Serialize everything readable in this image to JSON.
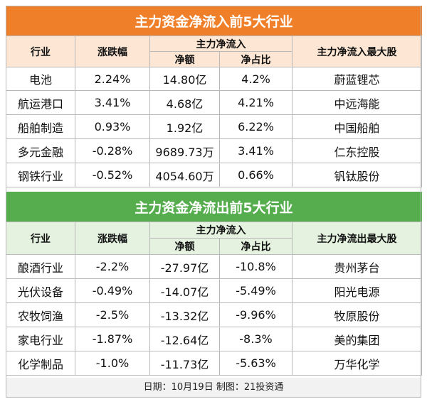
{
  "inflow": {
    "title": "主力资金净流入前5大行业",
    "headers": {
      "industry": "行业",
      "change": "涨跌幅",
      "group": "主力净流入",
      "amount": "净额",
      "ratio": "净占比",
      "top_stock": "主力净流入最大股"
    },
    "rows": [
      {
        "industry": "电池",
        "change": "2.24%",
        "amount": "14.80亿",
        "ratio": "4.2%",
        "top_stock": "蔚蓝锂芯"
      },
      {
        "industry": "航运港口",
        "change": "3.41%",
        "amount": "4.68亿",
        "ratio": "4.21%",
        "top_stock": "中远海能"
      },
      {
        "industry": "船舶制造",
        "change": "0.93%",
        "amount": "1.92亿",
        "ratio": "6.22%",
        "top_stock": "中国船舶"
      },
      {
        "industry": "多元金融",
        "change": "-0.28%",
        "amount": "9689.73万",
        "ratio": "3.41%",
        "top_stock": "仁东控股"
      },
      {
        "industry": "钢铁行业",
        "change": "-0.52%",
        "amount": "4054.60万",
        "ratio": "0.66%",
        "top_stock": "钒钛股份"
      }
    ]
  },
  "outflow": {
    "title": "主力资金净流出前5大行业",
    "headers": {
      "industry": "行业",
      "change": "涨跌幅",
      "group": "主力净流入",
      "amount": "净额",
      "ratio": "净占比",
      "top_stock": "主力净流出最大股"
    },
    "rows": [
      {
        "industry": "酿酒行业",
        "change": "-2.2%",
        "amount": "-27.97亿",
        "ratio": "-10.8%",
        "top_stock": "贵州茅台"
      },
      {
        "industry": "光伏设备",
        "change": "-0.49%",
        "amount": "-14.07亿",
        "ratio": "-5.49%",
        "top_stock": "阳光电源"
      },
      {
        "industry": "农牧饲渔",
        "change": "-2.5%",
        "amount": "-13.32亿",
        "ratio": "-9.96%",
        "top_stock": "牧原股份"
      },
      {
        "industry": "家电行业",
        "change": "-1.87%",
        "amount": "-12.64亿",
        "ratio": "-8.3%",
        "top_stock": "美的集团"
      },
      {
        "industry": "化学制品",
        "change": "-1.0%",
        "amount": "-11.73亿",
        "ratio": "-5.63%",
        "top_stock": "万华化学"
      }
    ]
  },
  "footer": "日期：10月19日 制图：21投资通"
}
